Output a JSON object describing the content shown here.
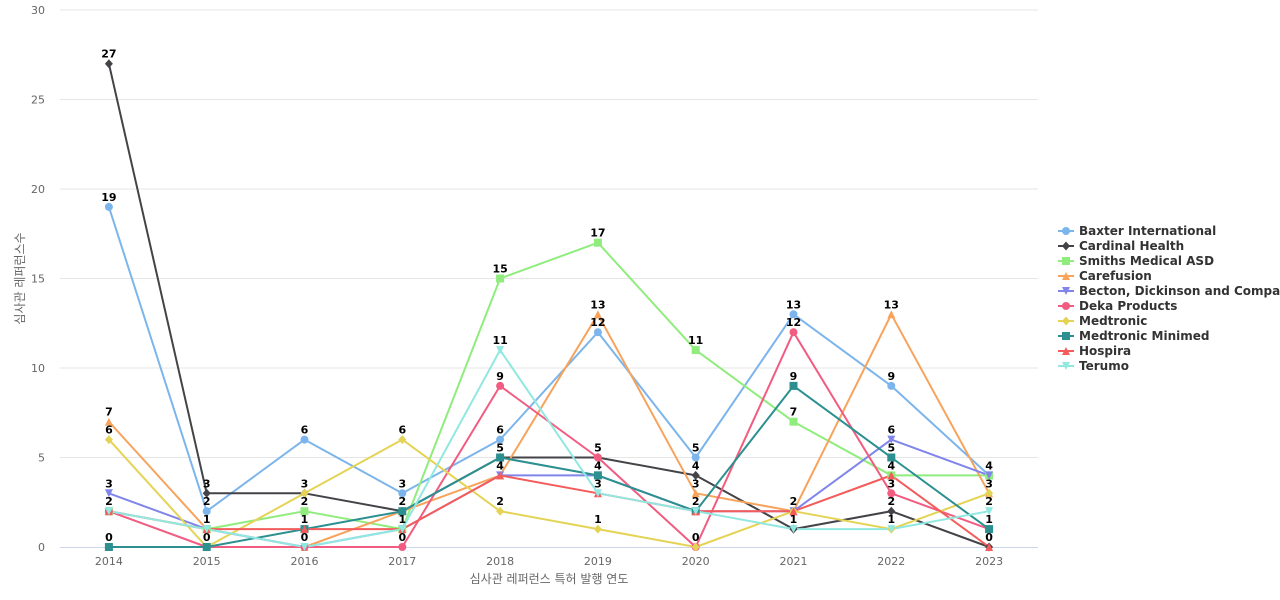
{
  "chart_data": {
    "type": "line",
    "title": "",
    "xlabel": "심사관 레퍼런스 특허 발행 연도",
    "ylabel": "심사관 레퍼런스수",
    "ylim": [
      0,
      30
    ],
    "yticks": [
      0,
      5,
      10,
      15,
      20,
      25,
      30
    ],
    "grid": true,
    "legend_position": "right",
    "categories": [
      "2014",
      "2015",
      "2016",
      "2017",
      "2018",
      "2019",
      "2020",
      "2021",
      "2022",
      "2023"
    ],
    "series": [
      {
        "name": "Baxter International",
        "color": "#7cb5ec",
        "marker": "circle",
        "values": [
          19,
          2,
          6,
          3,
          6,
          12,
          5,
          13,
          9,
          4
        ]
      },
      {
        "name": "Cardinal Health",
        "color": "#434348",
        "marker": "diamond",
        "values": [
          27,
          3,
          3,
          2,
          5,
          5,
          4,
          1,
          2,
          0
        ]
      },
      {
        "name": "Smiths Medical ASD",
        "color": "#90ed7d",
        "marker": "square",
        "values": [
          2,
          1,
          2,
          1,
          15,
          17,
          11,
          7,
          4,
          4
        ]
      },
      {
        "name": "Carefusion",
        "color": "#f7a35c",
        "marker": "triangle",
        "values": [
          7,
          1,
          0,
          2,
          4,
          13,
          3,
          2,
          13,
          3
        ]
      },
      {
        "name": "Becton, Dickinson and Compa...",
        "color": "#8085e9",
        "marker": "triangle-down",
        "values": [
          3,
          1,
          0,
          1,
          4,
          4,
          2,
          2,
          6,
          4
        ]
      },
      {
        "name": "Deka Products",
        "color": "#f15c80",
        "marker": "circle",
        "values": [
          2,
          0,
          0,
          0,
          9,
          5,
          0,
          12,
          3,
          1
        ]
      },
      {
        "name": "Medtronic",
        "color": "#e4d354",
        "marker": "diamond",
        "values": [
          6,
          0,
          3,
          6,
          2,
          1,
          0,
          2,
          1,
          3
        ]
      },
      {
        "name": "Medtronic Minimed",
        "color": "#2b908f",
        "marker": "square",
        "values": [
          0,
          0,
          1,
          2,
          5,
          4,
          2,
          9,
          5,
          1
        ]
      },
      {
        "name": "Hospira",
        "color": "#f45b5b",
        "marker": "triangle",
        "values": [
          2,
          1,
          1,
          1,
          4,
          3,
          2,
          2,
          4,
          0
        ]
      },
      {
        "name": "Terumo",
        "color": "#91e8e1",
        "marker": "triangle-down",
        "values": [
          2,
          1,
          0,
          1,
          11,
          3,
          2,
          1,
          1,
          2
        ]
      }
    ],
    "data_labels": [
      {
        "series": 0,
        "index": 0,
        "text": "19"
      },
      {
        "series": 1,
        "index": 0,
        "text": "27"
      },
      {
        "series": 3,
        "index": 0,
        "text": "7"
      },
      {
        "series": 6,
        "index": 0,
        "text": "6"
      },
      {
        "series": 4,
        "index": 0,
        "text": "3"
      },
      {
        "series": 5,
        "index": 0,
        "text": "2"
      },
      {
        "series": 7,
        "index": 0,
        "text": "0"
      },
      {
        "series": 1,
        "index": 1,
        "text": "3"
      },
      {
        "series": 0,
        "index": 1,
        "text": "2"
      },
      {
        "series": 2,
        "index": 1,
        "text": "1"
      },
      {
        "series": 7,
        "index": 1,
        "text": "0"
      },
      {
        "series": 0,
        "index": 2,
        "text": "6"
      },
      {
        "series": 1,
        "index": 2,
        "text": "3"
      },
      {
        "series": 2,
        "index": 2,
        "text": "2"
      },
      {
        "series": 7,
        "index": 2,
        "text": "1"
      },
      {
        "series": 5,
        "index": 2,
        "text": "0"
      },
      {
        "series": 6,
        "index": 3,
        "text": "6"
      },
      {
        "series": 0,
        "index": 3,
        "text": "3"
      },
      {
        "series": 1,
        "index": 3,
        "text": "2"
      },
      {
        "series": 2,
        "index": 3,
        "text": "1"
      },
      {
        "series": 5,
        "index": 3,
        "text": "0"
      },
      {
        "series": 2,
        "index": 4,
        "text": "15"
      },
      {
        "series": 9,
        "index": 4,
        "text": "11"
      },
      {
        "series": 5,
        "index": 4,
        "text": "9"
      },
      {
        "series": 0,
        "index": 4,
        "text": "6"
      },
      {
        "series": 7,
        "index": 4,
        "text": "5"
      },
      {
        "series": 3,
        "index": 4,
        "text": "4"
      },
      {
        "series": 6,
        "index": 4,
        "text": "2"
      },
      {
        "series": 2,
        "index": 5,
        "text": "17"
      },
      {
        "series": 3,
        "index": 5,
        "text": "13"
      },
      {
        "series": 0,
        "index": 5,
        "text": "12"
      },
      {
        "series": 1,
        "index": 5,
        "text": "5"
      },
      {
        "series": 7,
        "index": 5,
        "text": "4"
      },
      {
        "series": 8,
        "index": 5,
        "text": "3"
      },
      {
        "series": 6,
        "index": 5,
        "text": "1"
      },
      {
        "series": 2,
        "index": 6,
        "text": "11"
      },
      {
        "series": 0,
        "index": 6,
        "text": "5"
      },
      {
        "series": 1,
        "index": 6,
        "text": "4"
      },
      {
        "series": 3,
        "index": 6,
        "text": "3"
      },
      {
        "series": 7,
        "index": 6,
        "text": "2"
      },
      {
        "series": 5,
        "index": 6,
        "text": "0"
      },
      {
        "series": 0,
        "index": 7,
        "text": "13"
      },
      {
        "series": 5,
        "index": 7,
        "text": "12"
      },
      {
        "series": 7,
        "index": 7,
        "text": "9"
      },
      {
        "series": 2,
        "index": 7,
        "text": "7"
      },
      {
        "series": 3,
        "index": 7,
        "text": "2"
      },
      {
        "series": 1,
        "index": 7,
        "text": "1"
      },
      {
        "series": 3,
        "index": 8,
        "text": "13"
      },
      {
        "series": 0,
        "index": 8,
        "text": "9"
      },
      {
        "series": 4,
        "index": 8,
        "text": "6"
      },
      {
        "series": 7,
        "index": 8,
        "text": "5"
      },
      {
        "series": 8,
        "index": 8,
        "text": "4"
      },
      {
        "series": 5,
        "index": 8,
        "text": "3"
      },
      {
        "series": 1,
        "index": 8,
        "text": "2"
      },
      {
        "series": 6,
        "index": 8,
        "text": "1"
      },
      {
        "series": 0,
        "index": 9,
        "text": "4"
      },
      {
        "series": 3,
        "index": 9,
        "text": "3"
      },
      {
        "series": 9,
        "index": 9,
        "text": "2"
      },
      {
        "series": 7,
        "index": 9,
        "text": "1"
      },
      {
        "series": 1,
        "index": 9,
        "text": "0"
      }
    ]
  }
}
